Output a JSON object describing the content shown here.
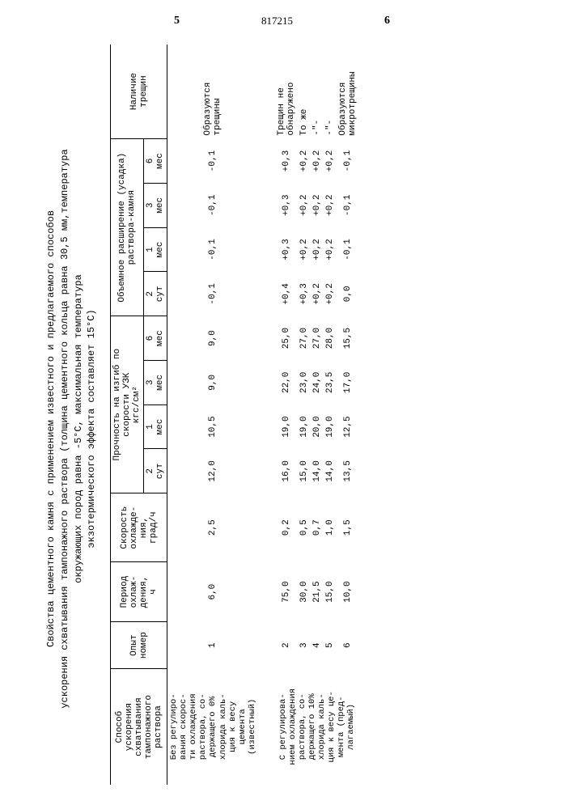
{
  "page_left": "5",
  "doc_number": "817215",
  "page_right": "6",
  "caption_l1": "Свойства цементного камня с применением известного и предлагаемого способов",
  "caption_l2": "ускорения схватывания тампонажного раствора (толщина цементного кольца равна 30,5 мм,температура",
  "caption_l3": "окружающих пород равна -5°С, максимальная температура",
  "caption_l4": "экзотермического эффекта составляет 15°С)",
  "h_method": "Способ\nускорения\nсхватывания\nтампонажного\nраствора",
  "h_opyt": "Опыт\nномер",
  "h_period": "Период\nохлаж-\nдения,\nч",
  "h_speed": "Скорость\nохлажде-\nния,\nград/ч",
  "h_strength": "Прочность на изгиб по\nскорости УЗК\nкгс/см²",
  "h_volume": "Объемное расширение (усадка)\nраствора-камня",
  "h_cracks": "Наличие\nтрещин",
  "sub_2s": "2\nсут",
  "sub_1m": "1\nмес",
  "sub_3m": "3\nмес",
  "sub_6m": "6\nмес",
  "r1_desc": "Без регулиро-\nвания скорос-\nти охлаждения\nраствора, со-\nдержащего 0%\nхлорида каль-\nция к весу\nцемента\n(известный)",
  "r2_desc": "С регулирова-\nнием охлаждения\nраствора, со-\nдержащего 10%\nхлорида каль-\nция к весу це-\nмента (пред-\nлагаемый)",
  "rows": [
    {
      "n": "1",
      "p": "6,0",
      "s": "2,5",
      "st": [
        "12,0",
        "10,5",
        "9,0",
        "9,0"
      ],
      "v": [
        "-0,1",
        "-0,1",
        "-0,1",
        "-0,1"
      ],
      "c": "Образуются\nтрещины"
    },
    {
      "n": "2",
      "p": "75,0",
      "s": "0,2",
      "st": [
        "16,0",
        "19,0",
        "22,0",
        "25,0"
      ],
      "v": [
        "+0,4",
        "+0,3",
        "+0,3",
        "+0,3"
      ],
      "c": "Трещин не\nобнаружено"
    },
    {
      "n": "3",
      "p": "30,0",
      "s": "0,5",
      "st": [
        "15,0",
        "19,0",
        "23,0",
        "27,0"
      ],
      "v": [
        "+0,3",
        "+0,2",
        "+0,2",
        "+0,2"
      ],
      "c": "То же"
    },
    {
      "n": "4",
      "p": "21,5",
      "s": "0,7",
      "st": [
        "14,0",
        "20,0",
        "24,0",
        "27,0"
      ],
      "v": [
        "+0,2",
        "+0,2",
        "+0,2",
        "+0,2"
      ],
      "c": "-\"-"
    },
    {
      "n": "5",
      "p": "15,0",
      "s": "1,0",
      "st": [
        "14,0",
        "19,0",
        "23,5",
        "28,0"
      ],
      "v": [
        "+0,2",
        "+0,2",
        "+0,2",
        "+0,2"
      ],
      "c": "-\"-"
    },
    {
      "n": "6",
      "p": "10,0",
      "s": "1,5",
      "st": [
        "13,5",
        "12,5",
        "17,0",
        "15,5"
      ],
      "v": [
        "0,0",
        "-0,1",
        "-0,1",
        "-0,1"
      ],
      "c": "Образуются\nмикротрещины"
    }
  ],
  "colors": {
    "text": "#000000",
    "bg": "#ffffff",
    "rule": "#000000"
  }
}
